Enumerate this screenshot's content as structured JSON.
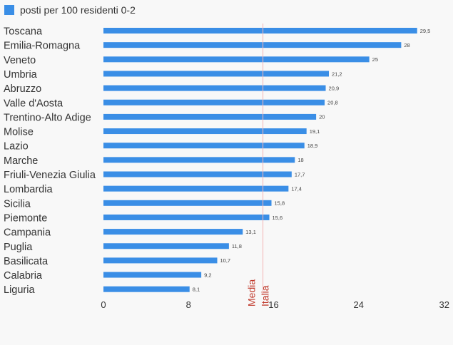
{
  "legend": {
    "label": "posti per 100 residenti 0-2"
  },
  "colors": {
    "bar": "#3a8ee6",
    "reference_line": "#f4b6b6",
    "reference_text": "#c0392b"
  },
  "chart_data": {
    "type": "bar",
    "orientation": "horizontal",
    "categories": [
      "Toscana",
      "Emilia-Romagna",
      "Veneto",
      "Umbria",
      "Abruzzo",
      "Valle d'Aosta",
      "Trentino-Alto Adige",
      "Molise",
      "Lazio",
      "Marche",
      "Friuli-Venezia Giulia",
      "Lombardia",
      "Sicilia",
      "Piemonte",
      "Campania",
      "Puglia",
      "Basilicata",
      "Calabria",
      "Liguria"
    ],
    "series": [
      {
        "name": "posti per 100 residenti 0-2",
        "values": [
          29.5,
          28,
          25,
          21.2,
          20.9,
          20.8,
          20,
          19.1,
          18.9,
          18,
          17.7,
          17.4,
          15.8,
          15.6,
          13.1,
          11.8,
          10.7,
          9.2,
          8.1
        ],
        "value_labels": [
          "29,5",
          "28",
          "25",
          "21,2",
          "20,9",
          "20,8",
          "20",
          "19,1",
          "18,9",
          "18",
          "17,7",
          "17,4",
          "15,8",
          "15,6",
          "13,1",
          "11,8",
          "10,7",
          "9,2",
          "8,1"
        ]
      }
    ],
    "xlim": [
      0,
      32
    ],
    "x_ticks": [
      0,
      8,
      16,
      24,
      32
    ],
    "x_tick_labels": [
      "0",
      "8",
      "16",
      "24",
      "32"
    ],
    "reference_line": {
      "value": 15,
      "label_lines": [
        "Media",
        "Italia"
      ]
    },
    "legend_position": "top-left",
    "grid": false
  }
}
